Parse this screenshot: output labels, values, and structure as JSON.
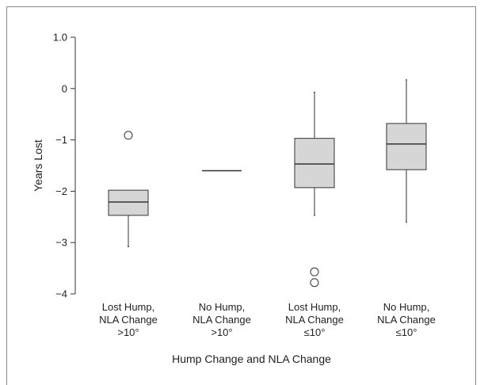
{
  "chart_data": {
    "type": "box",
    "xlabel": "Hump Change and NLA Change",
    "ylabel": "Years Lost",
    "ylim": [
      -4,
      1
    ],
    "yticks": [
      {
        "value": 1,
        "label": "1.0"
      },
      {
        "value": 0,
        "label": "0"
      },
      {
        "value": -1,
        "label": "−1"
      },
      {
        "value": -2,
        "label": "−2"
      },
      {
        "value": -3,
        "label": "−3"
      },
      {
        "value": -4,
        "label": "−4"
      }
    ],
    "categories": [
      {
        "lines": [
          "Lost Hump,",
          "NLA Change",
          ">10°"
        ]
      },
      {
        "lines": [
          "No Hump,",
          "NLA Change",
          ">10°"
        ]
      },
      {
        "lines": [
          "Lost Hump,",
          "NLA Change",
          "≤10°"
        ]
      },
      {
        "lines": [
          "No Hump,",
          "NLA Change",
          "≤10°"
        ]
      }
    ],
    "boxes": [
      {
        "whisker_low": -3.08,
        "q1": -2.47,
        "median": -2.21,
        "q3": -1.98,
        "whisker_high": -1.98,
        "outliers": [
          -0.91
        ]
      },
      {
        "whisker_low": null,
        "q1": -1.6,
        "median": -1.6,
        "q3": -1.6,
        "whisker_high": null,
        "outliers": []
      },
      {
        "whisker_low": -2.47,
        "q1": -1.93,
        "median": -1.47,
        "q3": -0.97,
        "whisker_high": -0.07,
        "outliers": [
          -3.57,
          -3.78
        ]
      },
      {
        "whisker_low": -2.6,
        "q1": -1.58,
        "median": -1.08,
        "q3": -0.68,
        "whisker_high": 0.17,
        "outliers": []
      }
    ],
    "grid": false,
    "box_fill": "#d6d6d6",
    "line_color": "#333333"
  }
}
